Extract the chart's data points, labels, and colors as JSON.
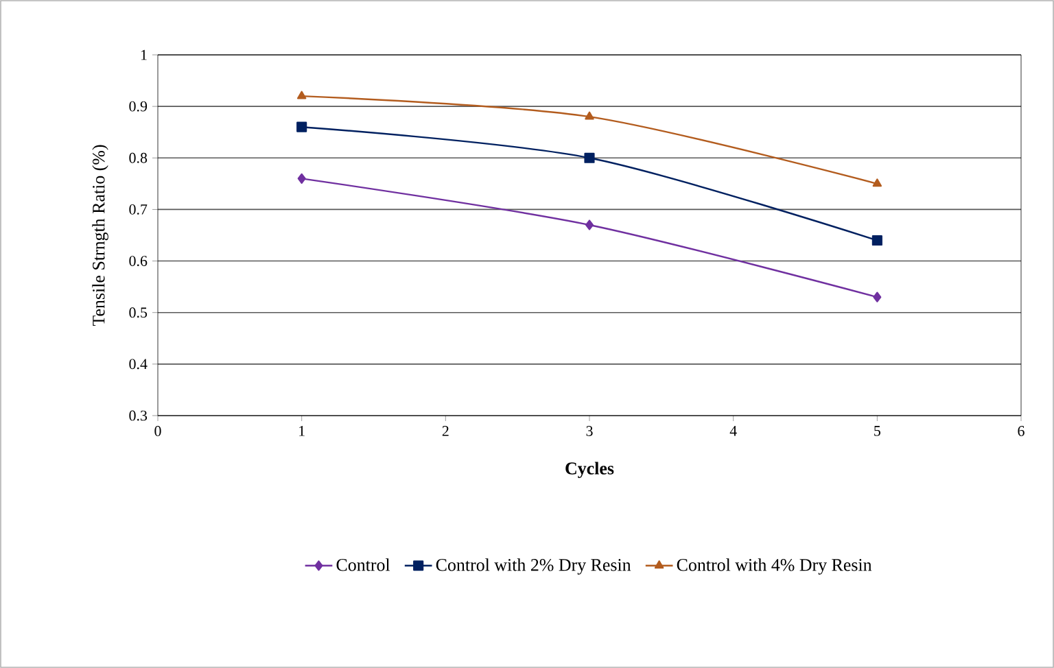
{
  "chart_data": {
    "type": "line",
    "xlabel": "Cycles",
    "ylabel": "Tensile Strngth Ratio (%)",
    "x": [
      1,
      3,
      5
    ],
    "series": [
      {
        "name": "Control",
        "color": "#7030a0",
        "marker": "diamond",
        "values": [
          0.76,
          0.67,
          0.53
        ]
      },
      {
        "name": "Control with 2% Dry Resin",
        "color": "#002060",
        "marker": "square",
        "values": [
          0.86,
          0.8,
          0.64
        ]
      },
      {
        "name": "Control with 4% Dry Resin",
        "color": "#b35c1e",
        "marker": "triangle",
        "values": [
          0.92,
          0.88,
          0.75
        ]
      }
    ],
    "xlim": [
      0,
      6
    ],
    "xticks": [
      0,
      1,
      2,
      3,
      4,
      5,
      6
    ],
    "ylim": [
      0.3,
      1
    ],
    "yticks": [
      0.3,
      0.4,
      0.5,
      0.6,
      0.7,
      0.8,
      0.9,
      1
    ],
    "grid": "y",
    "legend": "bottom",
    "line_style": "solid"
  }
}
